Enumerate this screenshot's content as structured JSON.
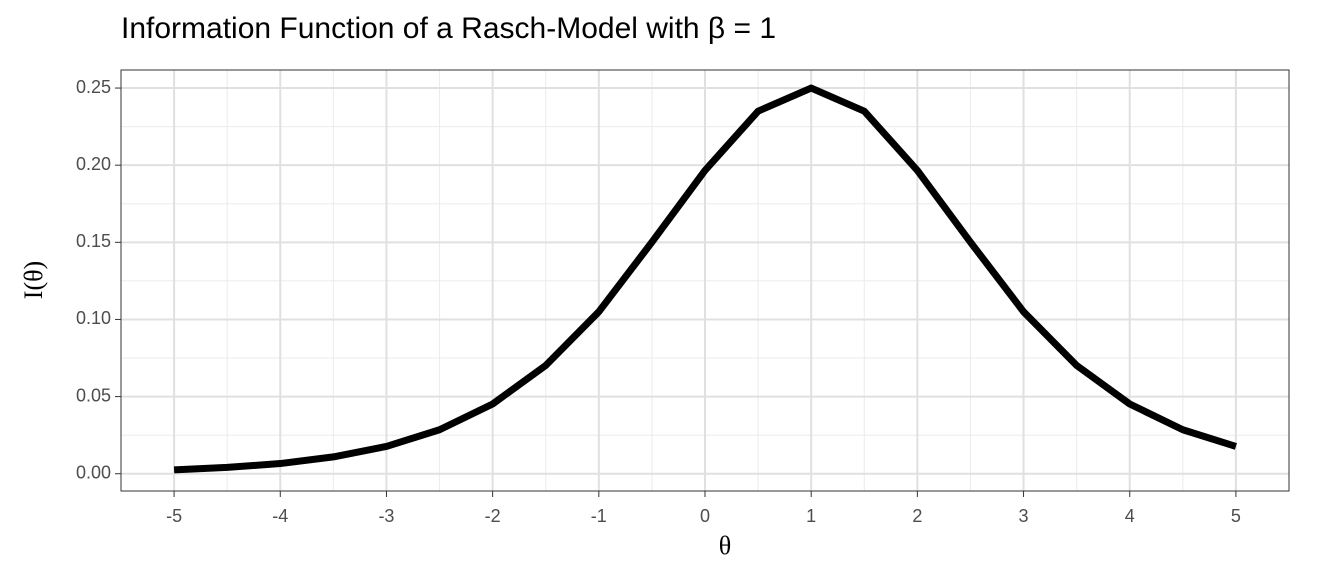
{
  "chart_data": {
    "type": "line",
    "title": "Information Function of a Rasch-Model with β = 1",
    "x_label": "θ",
    "y_label": "I(θ)",
    "x": [
      -5,
      -4.5,
      -4,
      -3.5,
      -3,
      -2.5,
      -2,
      -1.5,
      -1,
      -0.5,
      0,
      0.5,
      1,
      1.5,
      2,
      2.5,
      3,
      3.5,
      4,
      4.5,
      5
    ],
    "series": [
      {
        "color": "#000000",
        "values": [
          0.0025,
          0.0041,
          0.0066,
          0.0109,
          0.0177,
          0.0285,
          0.0452,
          0.0702,
          0.105,
          0.1501,
          0.1966,
          0.235,
          0.25,
          0.235,
          0.1966,
          0.1501,
          0.105,
          0.0702,
          0.0452,
          0.0285,
          0.0177
        ]
      }
    ],
    "xlim": [
      -5.5,
      5.5
    ],
    "ylim": [
      -0.0112,
      0.2617
    ],
    "xticks": [
      -5,
      -4,
      -3,
      -2,
      -1,
      0,
      1,
      2,
      3,
      4,
      5
    ],
    "yticks": [
      {
        "value": 0,
        "label": "0.00"
      },
      {
        "value": 0.05,
        "label": "0.05"
      },
      {
        "value": 0.1,
        "label": "0.10"
      },
      {
        "value": 0.15,
        "label": "0.15"
      },
      {
        "value": 0.2,
        "label": "0.20"
      },
      {
        "value": 0.25,
        "label": "0.25"
      }
    ],
    "grid": true
  }
}
